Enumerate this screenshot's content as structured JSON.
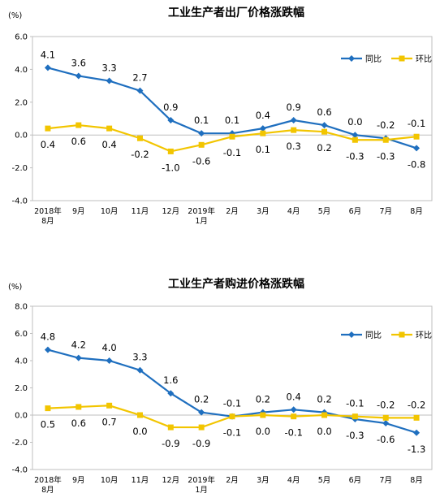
{
  "chart_data": [
    {
      "type": "line",
      "title": "工业生产者出厂价格涨跌幅",
      "unit": "(%)",
      "categories": [
        "2018年8月",
        "9月",
        "10月",
        "11月",
        "12月",
        "2019年1月",
        "2月",
        "3月",
        "4月",
        "5月",
        "6月",
        "7月",
        "8月"
      ],
      "category_lines": [
        [
          "2018年",
          "8月"
        ],
        [
          "9月"
        ],
        [
          "10月"
        ],
        [
          "11月"
        ],
        [
          "12月"
        ],
        [
          "2019年",
          "1月"
        ],
        [
          "2月"
        ],
        [
          "3月"
        ],
        [
          "4月"
        ],
        [
          "5月"
        ],
        [
          "6月"
        ],
        [
          "7月"
        ],
        [
          "8月"
        ]
      ],
      "ylim": [
        -4.0,
        6.0
      ],
      "yticks": [
        "6.0",
        "4.0",
        "2.0",
        "0.0",
        "-2.0",
        "-4.0"
      ],
      "legend_position": "top-right",
      "series": [
        {
          "name": "同比",
          "color": "#1f6fbf",
          "marker": "diamond",
          "values": [
            4.1,
            3.6,
            3.3,
            2.7,
            0.9,
            0.1,
            0.1,
            0.4,
            0.9,
            0.6,
            0.0,
            -0.2,
            -0.8
          ],
          "labels": [
            "4.1",
            "3.6",
            "3.3",
            "2.7",
            "0.9",
            "0.1",
            "0.1",
            "0.4",
            "0.9",
            "0.6",
            "0.0",
            "-0.2",
            "-0.8"
          ]
        },
        {
          "name": "环比",
          "color": "#f2c500",
          "marker": "square",
          "values": [
            0.4,
            0.6,
            0.4,
            -0.2,
            -1.0,
            -0.6,
            -0.1,
            0.1,
            0.3,
            0.2,
            -0.3,
            -0.3,
            -0.1
          ],
          "labels": [
            "0.4",
            "0.6",
            "0.4",
            "-0.2",
            "-1.0",
            "-0.6",
            "-0.1",
            "0.1",
            "0.3",
            "0.2",
            "-0.3",
            "-0.3",
            "-0.1"
          ]
        }
      ]
    },
    {
      "type": "line",
      "title": "工业生产者购进价格涨跌幅",
      "unit": "(%)",
      "categories": [
        "2018年8月",
        "9月",
        "10月",
        "11月",
        "12月",
        "2019年1月",
        "2月",
        "3月",
        "4月",
        "5月",
        "6月",
        "7月",
        "8月"
      ],
      "category_lines": [
        [
          "2018年",
          "8月"
        ],
        [
          "9月"
        ],
        [
          "10月"
        ],
        [
          "11月"
        ],
        [
          "12月"
        ],
        [
          "2019年",
          "1月"
        ],
        [
          "2月"
        ],
        [
          "3月"
        ],
        [
          "4月"
        ],
        [
          "5月"
        ],
        [
          "6月"
        ],
        [
          "7月"
        ],
        [
          "8月"
        ]
      ],
      "ylim": [
        -4.0,
        8.0
      ],
      "yticks": [
        "8.0",
        "6.0",
        "4.0",
        "2.0",
        "0.0",
        "-2.0",
        "-4.0"
      ],
      "legend_position": "top-right",
      "series": [
        {
          "name": "同比",
          "color": "#1f6fbf",
          "marker": "diamond",
          "values": [
            4.8,
            4.2,
            4.0,
            3.3,
            1.6,
            0.2,
            -0.1,
            0.2,
            0.4,
            0.2,
            -0.3,
            -0.6,
            -1.3
          ],
          "labels": [
            "4.8",
            "4.2",
            "4.0",
            "3.3",
            "1.6",
            "0.2",
            "-0.1",
            "0.2",
            "0.4",
            "0.2",
            "-0.3",
            "-0.6",
            "-1.3"
          ]
        },
        {
          "name": "环比",
          "color": "#f2c500",
          "marker": "square",
          "values": [
            0.5,
            0.6,
            0.7,
            0.0,
            -0.9,
            -0.9,
            -0.1,
            0.0,
            -0.1,
            0.0,
            -0.1,
            -0.2,
            -0.2
          ],
          "labels": [
            "0.5",
            "0.6",
            "0.7",
            "0.0",
            "-0.9",
            "-0.9",
            "-0.1",
            "0.0",
            "-0.1",
            "0.0",
            "-0.1",
            "-0.2",
            "-0.2"
          ]
        }
      ]
    }
  ]
}
